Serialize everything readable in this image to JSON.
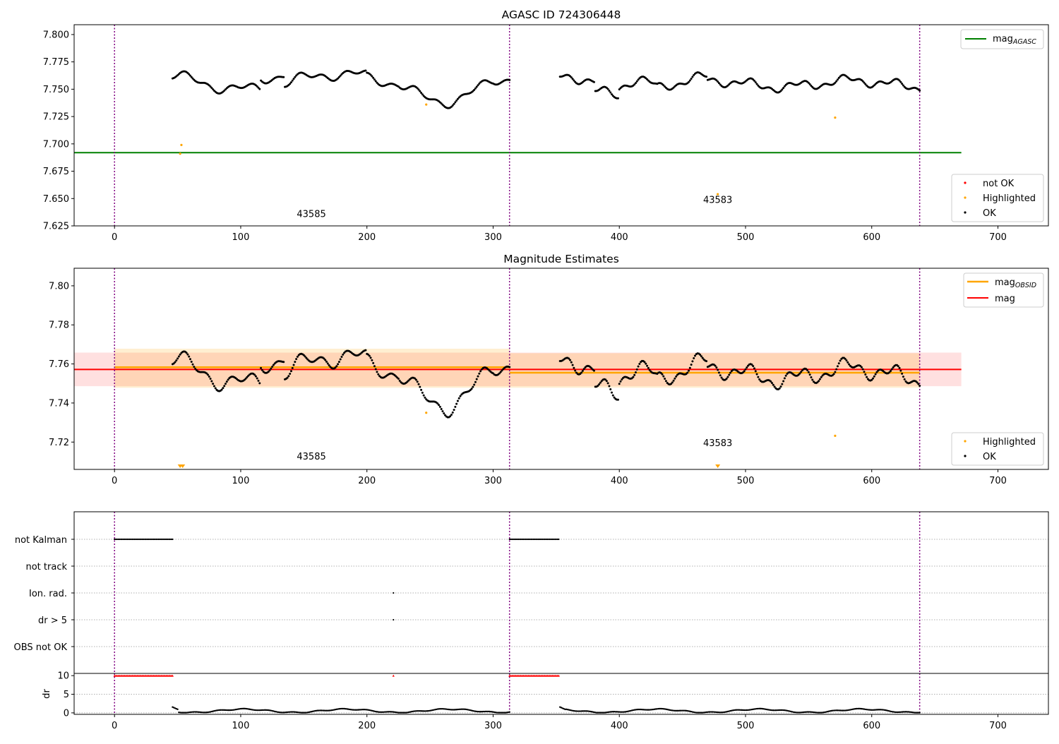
{
  "chart_data": [
    {
      "id": "agasc",
      "type": "scatter",
      "title": "AGASC ID 724306448",
      "xlim": [
        -32,
        740
      ],
      "ylim": [
        7.625,
        7.809
      ],
      "xticks": [
        0,
        100,
        200,
        300,
        400,
        500,
        600,
        700
      ],
      "yticks": [
        7.625,
        7.65,
        7.675,
        7.7,
        7.725,
        7.75,
        7.775,
        7.8
      ],
      "ytick_labels": [
        "7.625",
        "7.650",
        "7.675",
        "7.700",
        "7.725",
        "7.750",
        "7.775",
        "7.800"
      ],
      "obs_boundaries": [
        0,
        313,
        638
      ],
      "mag_agasc": 7.692,
      "mag_agasc_x_range": [
        -32,
        671
      ],
      "legend_lines": [
        {
          "label": "mag",
          "subscript": "AGASC",
          "color": "#008000"
        }
      ],
      "legend_points": [
        {
          "label": "not OK",
          "color": "#ff0000"
        },
        {
          "label": "Highlighted",
          "color": "#ffa500"
        },
        {
          "label": "OK",
          "color": "#000000"
        }
      ],
      "obsid_labels": [
        {
          "text": "43585",
          "x": 156,
          "y": 7.633
        },
        {
          "text": "43583",
          "x": 478,
          "y": 7.646
        }
      ],
      "highlighted_points": [
        {
          "x": 52,
          "y": 7.691
        },
        {
          "x": 53,
          "y": 7.699
        },
        {
          "x": 247,
          "y": 7.736
        },
        {
          "x": 478,
          "y": 7.654
        },
        {
          "x": 571,
          "y": 7.724
        }
      ],
      "ok_segments": [
        {
          "x_start": 45,
          "x_end": 313,
          "base": 7.757,
          "amp": 0.01,
          "pattern": "a"
        },
        {
          "x_start": 352,
          "x_end": 638,
          "base": 7.755,
          "amp": 0.009,
          "pattern": "b"
        }
      ]
    },
    {
      "id": "estimates",
      "type": "scatter",
      "title": "Magnitude Estimates",
      "xlim": [
        -32,
        740
      ],
      "ylim": [
        7.706,
        7.809
      ],
      "xticks": [
        0,
        100,
        200,
        300,
        400,
        500,
        600,
        700
      ],
      "yticks": [
        7.72,
        7.74,
        7.76,
        7.78,
        7.8
      ],
      "ytick_labels": [
        "7.72",
        "7.74",
        "7.76",
        "7.78",
        "7.80"
      ],
      "obs_boundaries": [
        0,
        313,
        638
      ],
      "mag": 7.7572,
      "mag_band": [
        7.7486,
        7.7658
      ],
      "mag_x_range": [
        -32,
        671
      ],
      "mag_obsid": [
        {
          "x_range": [
            0,
            313
          ],
          "value": 7.7583,
          "band": [
            7.7478,
            7.7678
          ]
        },
        {
          "x_range": [
            313,
            638
          ],
          "value": 7.7555,
          "band": [
            7.7478,
            7.7655
          ]
        }
      ],
      "legend_lines": [
        {
          "label": "mag",
          "subscript": "OBSID",
          "color": "#ffa500"
        },
        {
          "label": "mag",
          "subscript": "",
          "color": "#ff0000"
        }
      ],
      "legend_points": [
        {
          "label": "Highlighted",
          "color": "#ffa500"
        },
        {
          "label": "OK",
          "color": "#000000"
        }
      ],
      "obsid_labels": [
        {
          "text": "43585",
          "x": 156,
          "y": 7.711
        },
        {
          "text": "43583",
          "x": 478,
          "y": 7.718
        }
      ],
      "highlighted_points": [
        {
          "x": 247,
          "y": 7.735
        },
        {
          "x": 571,
          "y": 7.7232
        }
      ],
      "offscale_markers": [
        {
          "x": 52
        },
        {
          "x": 54
        },
        {
          "x": 478
        }
      ],
      "ok_segments": [
        {
          "x_start": 45,
          "x_end": 313,
          "base": 7.757,
          "amp": 0.01,
          "pattern": "a"
        },
        {
          "x_start": 352,
          "x_end": 638,
          "base": 7.755,
          "amp": 0.009,
          "pattern": "b"
        }
      ]
    },
    {
      "id": "flags",
      "type": "scatter",
      "categories": [
        "not Kalman",
        "not track",
        "Ion. rad.",
        "dr > 5",
        "OBS not OK"
      ],
      "xlim": [
        -32,
        740
      ],
      "obs_boundaries": [
        0,
        313,
        638
      ],
      "flag_ranges": [
        {
          "category": "not Kalman",
          "x_range": [
            0,
            46
          ]
        },
        {
          "category": "not Kalman",
          "x_range": [
            313,
            352
          ]
        }
      ],
      "flag_points": [
        {
          "category": "Ion. rad.",
          "x": 221
        },
        {
          "category": "dr > 5",
          "x": 221
        }
      ]
    },
    {
      "id": "dr",
      "type": "scatter",
      "ylabel": "dr",
      "xlim": [
        -32,
        740
      ],
      "ylim": [
        -0.4,
        10.6
      ],
      "xticks": [
        0,
        100,
        200,
        300,
        400,
        500,
        600,
        700
      ],
      "yticks": [
        0,
        5,
        10
      ],
      "obs_boundaries": [
        0,
        313,
        638
      ],
      "clipped_ranges": [
        {
          "x_range": [
            0,
            46
          ],
          "value": 10
        },
        {
          "x_range": [
            313,
            352
          ],
          "value": 10
        }
      ],
      "clipped_points": [
        {
          "x": 221,
          "value": 10
        }
      ],
      "segments": [
        {
          "x_start": 45,
          "x_end": 313
        },
        {
          "x_start": 352,
          "x_end": 638
        }
      ]
    }
  ]
}
